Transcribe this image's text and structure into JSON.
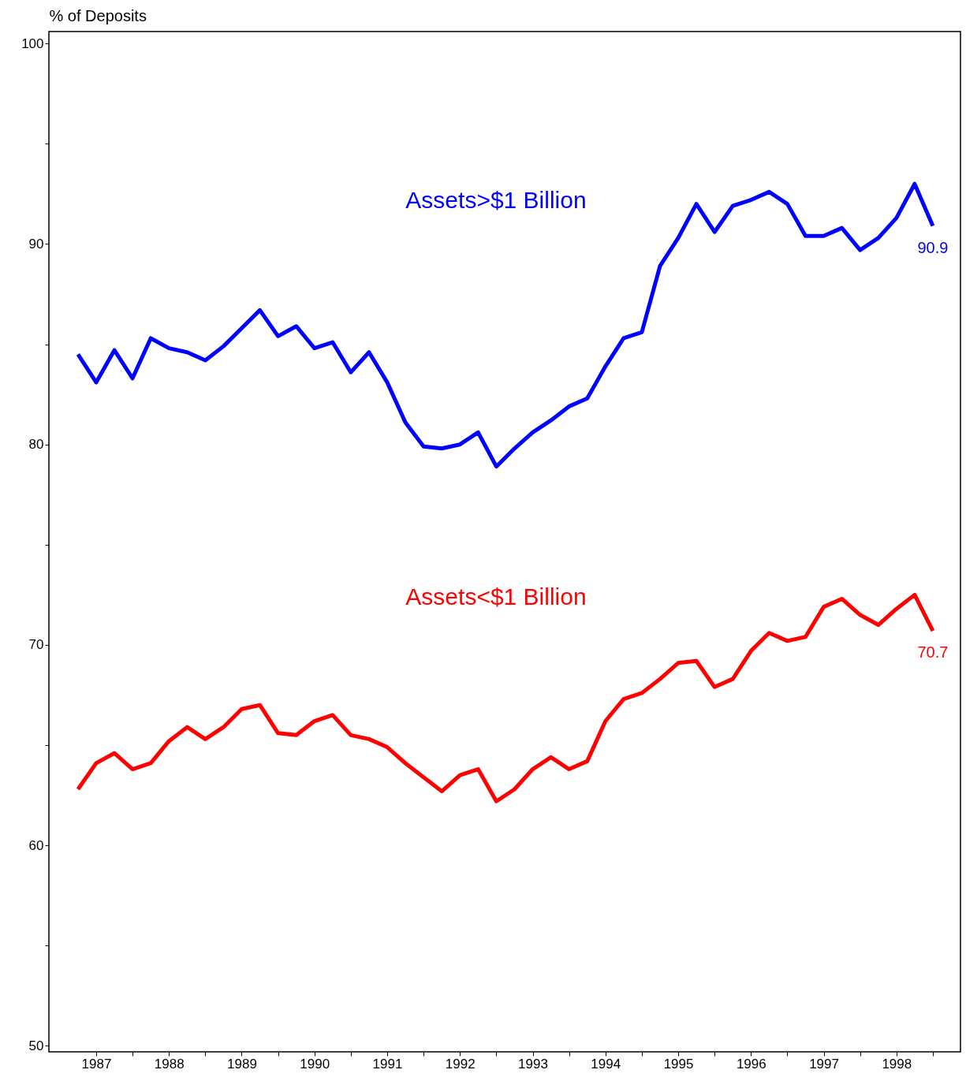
{
  "chart_data": {
    "type": "line",
    "ylabel": "% of Deposits",
    "x": [
      1987.25,
      1987.5,
      1987.75,
      1988,
      1988.25,
      1988.5,
      1988.75,
      1989,
      1989.25,
      1989.5,
      1989.75,
      1990,
      1990.25,
      1990.5,
      1990.75,
      1991,
      1991.25,
      1991.5,
      1991.75,
      1992,
      1992.25,
      1992.5,
      1992.75,
      1993,
      1993.25,
      1993.5,
      1993.75,
      1994,
      1994.25,
      1994.5,
      1994.75,
      1995,
      1995.25,
      1995.5,
      1995.75,
      1996,
      1996.25,
      1996.5,
      1996.75,
      1997,
      1997.25,
      1997.5,
      1997.75,
      1998,
      1998.25,
      1998.5,
      1998.75,
      1999
    ],
    "series": [
      {
        "name": "Assets>$1 Billion",
        "color": "#0000ff",
        "values": [
          84.5,
          83.1,
          84.7,
          83.3,
          85.3,
          84.8,
          84.6,
          84.2,
          84.9,
          85.8,
          86.7,
          85.4,
          85.9,
          84.8,
          85.1,
          83.6,
          84.6,
          83.1,
          81.1,
          79.9,
          79.8,
          80.0,
          80.6,
          78.9,
          79.8,
          80.6,
          81.2,
          81.9,
          82.3,
          83.9,
          85.3,
          85.6,
          88.9,
          90.3,
          92.0,
          90.6,
          91.9,
          92.2,
          92.6,
          92.0,
          90.4,
          90.4,
          90.8,
          89.7,
          90.3,
          91.3,
          93.0,
          90.9
        ],
        "value_labels": [
          null,
          null,
          null,
          null,
          null,
          null,
          null,
          null,
          null,
          null,
          null,
          null,
          null,
          null,
          null,
          null,
          null,
          null,
          null,
          null,
          null,
          null,
          null,
          null,
          null,
          null,
          null,
          null,
          null,
          null,
          null,
          null,
          null,
          null,
          null,
          null,
          null,
          null,
          null,
          null,
          null,
          null,
          null,
          null,
          null,
          null,
          null,
          "90.9"
        ]
      },
      {
        "name": "Assets<$1 Billion",
        "color": "#ff0000",
        "values": [
          62.8,
          64.1,
          64.6,
          63.8,
          64.1,
          65.2,
          65.9,
          65.3,
          65.9,
          66.8,
          67.0,
          65.6,
          65.5,
          66.2,
          66.5,
          65.5,
          65.3,
          64.9,
          64.1,
          63.4,
          62.7,
          63.5,
          63.8,
          62.2,
          62.8,
          63.8,
          64.4,
          63.8,
          64.2,
          66.2,
          67.3,
          67.6,
          68.3,
          69.1,
          69.2,
          67.9,
          68.3,
          69.7,
          70.6,
          70.2,
          70.4,
          71.9,
          72.3,
          71.5,
          71.0,
          71.8,
          72.5,
          70.7
        ],
        "value_labels": [
          null,
          null,
          null,
          null,
          null,
          null,
          null,
          null,
          null,
          null,
          null,
          null,
          null,
          null,
          null,
          null,
          null,
          null,
          null,
          null,
          null,
          null,
          null,
          null,
          null,
          null,
          null,
          null,
          null,
          null,
          null,
          null,
          null,
          null,
          null,
          null,
          null,
          null,
          null,
          null,
          null,
          null,
          null,
          null,
          null,
          null,
          null,
          "70.7"
        ]
      }
    ],
    "xlim": [
      1986.85,
      1999.38
    ],
    "xticks": [
      {
        "value": 1987.5,
        "label": "1987"
      },
      {
        "value": 1988.5,
        "label": "1988"
      },
      {
        "value": 1989.5,
        "label": "1989"
      },
      {
        "value": 1990.5,
        "label": "1990"
      },
      {
        "value": 1991.5,
        "label": "1991"
      },
      {
        "value": 1992.5,
        "label": "1992"
      },
      {
        "value": 1993.5,
        "label": "1993"
      },
      {
        "value": 1994.5,
        "label": "1994"
      },
      {
        "value": 1995.5,
        "label": "1995"
      },
      {
        "value": 1996.5,
        "label": "1996"
      },
      {
        "value": 1997.5,
        "label": "1997"
      },
      {
        "value": 1998.5,
        "label": "1998"
      },
      {
        "value": 1988,
        "label": null
      },
      {
        "value": 1989,
        "label": null
      },
      {
        "value": 1990,
        "label": null
      },
      {
        "value": 1991,
        "label": null
      },
      {
        "value": 1992,
        "label": null
      },
      {
        "value": 1993,
        "label": null
      },
      {
        "value": 1994,
        "label": null
      },
      {
        "value": 1995,
        "label": null
      },
      {
        "value": 1996,
        "label": null
      },
      {
        "value": 1997,
        "label": null
      },
      {
        "value": 1998,
        "label": null
      },
      {
        "value": 1999,
        "label": null
      }
    ],
    "ylim": [
      49.7,
      100.6
    ],
    "yticks": [
      50,
      {
        "value": 55,
        "label": null
      },
      60,
      {
        "value": 65,
        "label": null
      },
      70,
      {
        "value": 75,
        "label": null
      },
      80,
      {
        "value": 85,
        "label": null
      },
      90,
      {
        "value": 95,
        "label": null
      },
      100
    ],
    "grid": false,
    "legend": false
  }
}
